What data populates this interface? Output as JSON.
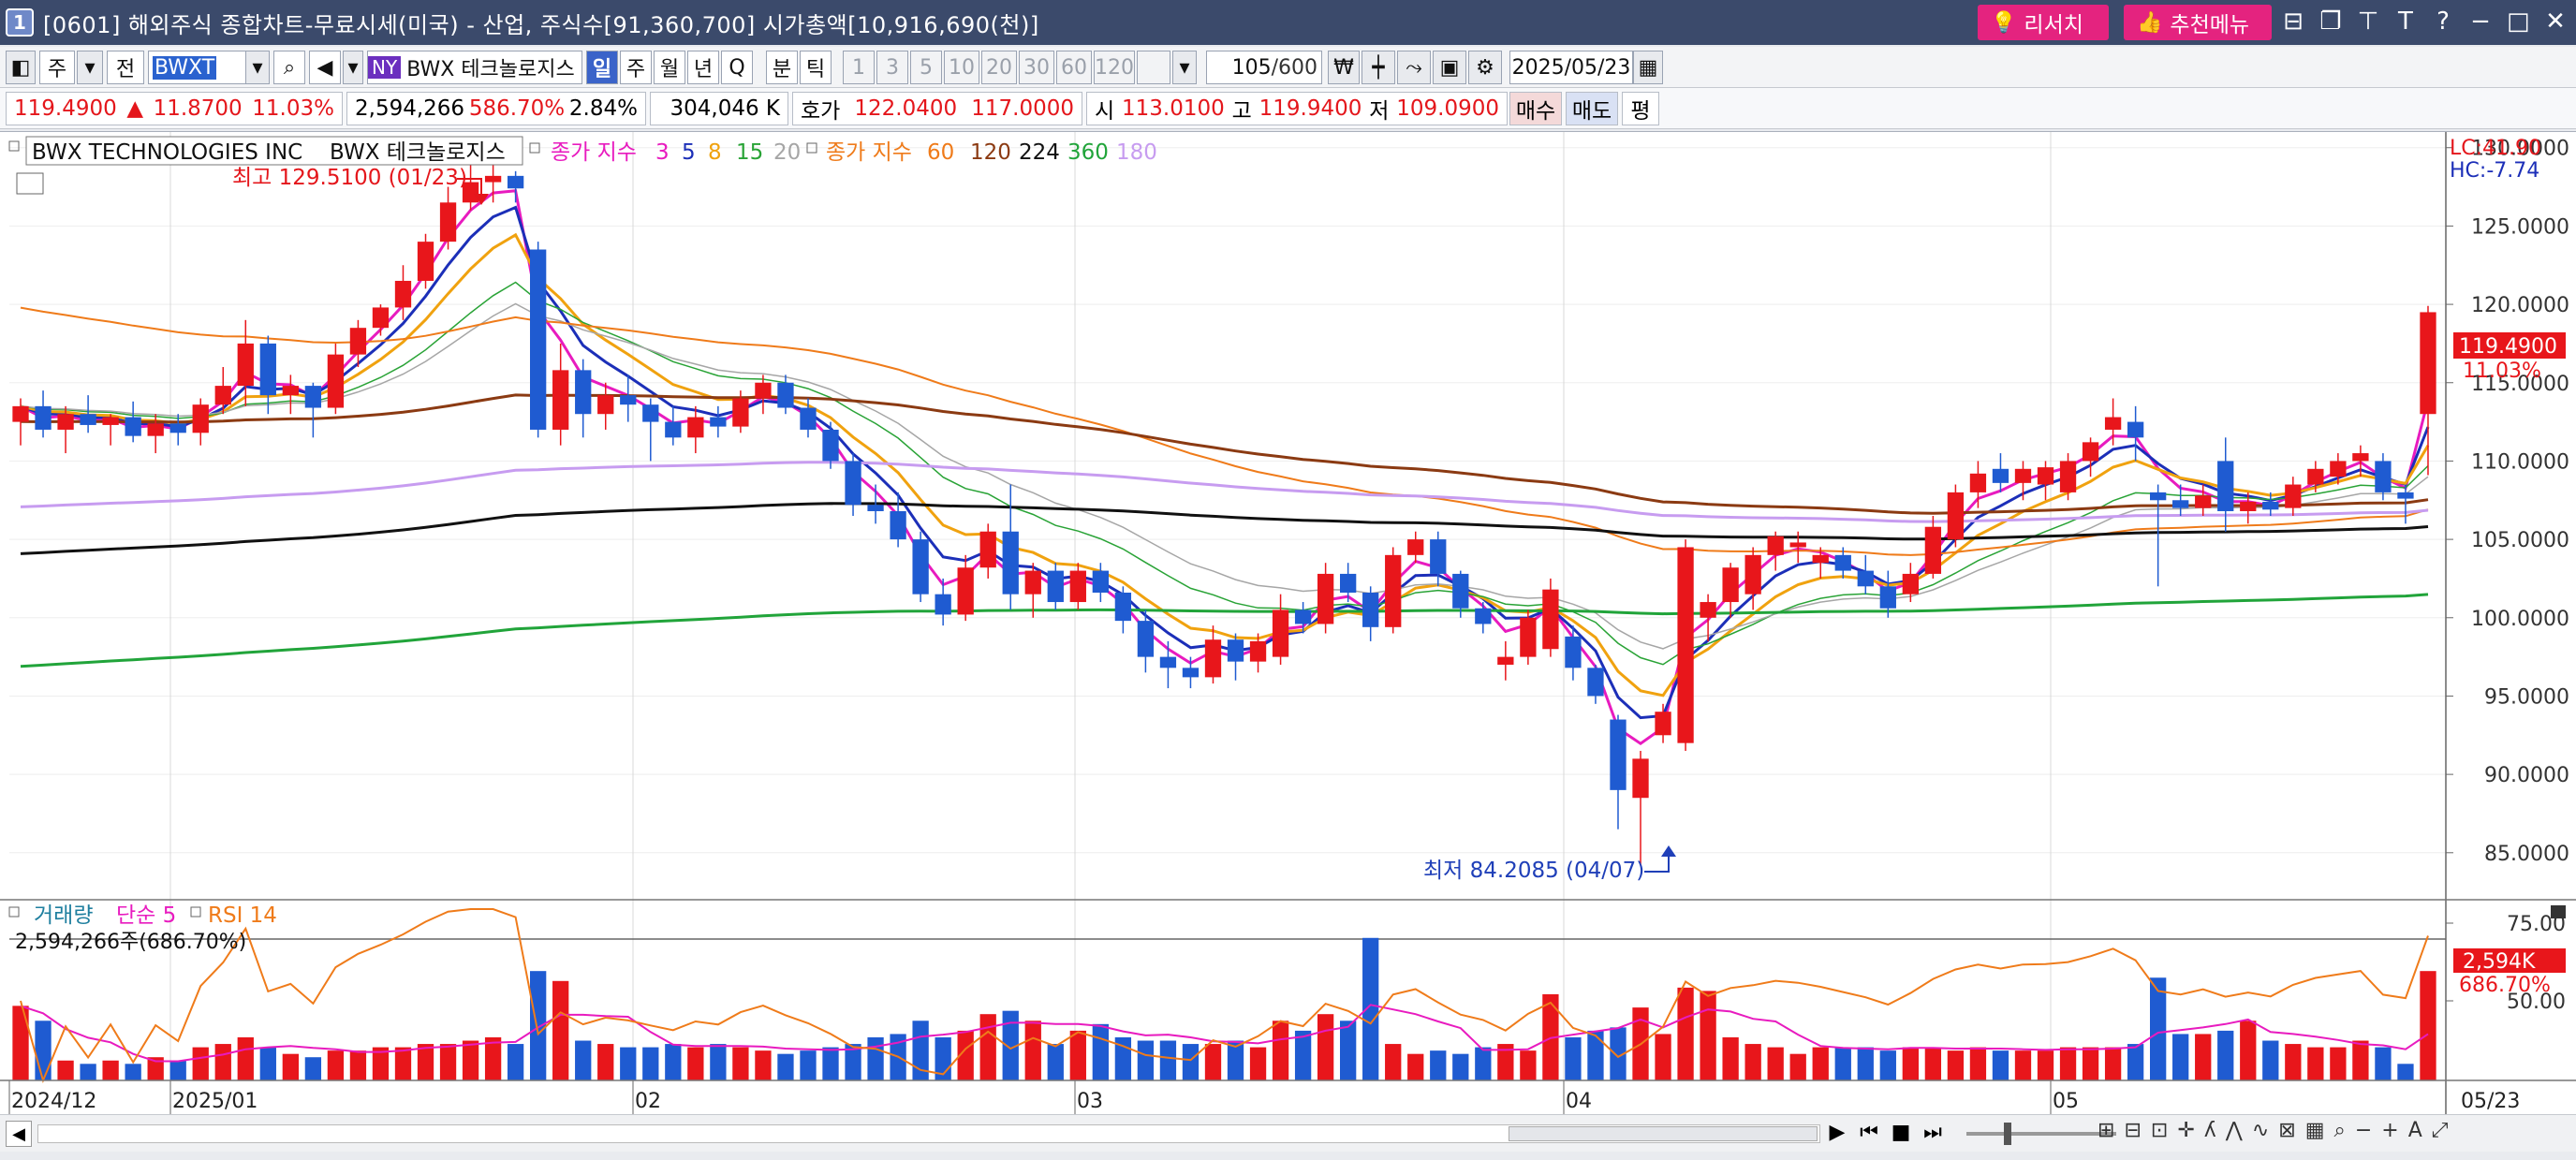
{
  "window": {
    "number": "1",
    "title": "[0601] 해외주식 종합차트-무료시세(미국) - 산업, 주식수[91,360,700] 시가총액[10,916,690(천)]",
    "research_label": "리서치",
    "recommend_label": "추천메뉴"
  },
  "toolbar": {
    "mode": "주",
    "prev": "전",
    "symbol": "BWXT",
    "exchange": "NY",
    "name": "BWX 테크놀로지스",
    "periods": [
      "일",
      "주",
      "월",
      "년",
      "Q",
      "분",
      "틱"
    ],
    "minutes": [
      "1",
      "3",
      "5",
      "10",
      "20",
      "30",
      "60",
      "120"
    ],
    "count": "105",
    "count_total": "/600",
    "date": "2025/05/23"
  },
  "quote": {
    "price": "119.4900",
    "arrow": "▲",
    "change": "11.8700",
    "change_pct": "11.03%",
    "volume": "2,594,266",
    "vol_ratio": "586.70%",
    "turnover": "2.84%",
    "amount": "304,046 K",
    "hoga_label": "호가",
    "ask": "122.0400",
    "bid": "117.0000",
    "open_label": "시",
    "open": "113.0100",
    "high_label": "고",
    "high": "119.9400",
    "low_label": "저",
    "low": "109.0900",
    "buy": "매수",
    "sell": "매도",
    "flat": "평"
  },
  "legend": {
    "name_en": "BWX TECHNOLOGIES INC",
    "name_kr": "BWX 테크놀로지스",
    "ema_label": "종가 지수",
    "ema_short": [
      "3",
      "5",
      "8",
      "15",
      "20"
    ],
    "ema_long_label": "종가 지수",
    "ema_long": [
      "60",
      "120",
      "224",
      "360",
      "180"
    ],
    "lc": "LC:41.90",
    "hc": "HC:-7.74"
  },
  "annotations": {
    "high": "최고 129.5100 (01/23)",
    "low": "최저 84.2085 (04/07)",
    "last_price": "119.4900",
    "last_pct": "11.03%"
  },
  "colors": {
    "up": "#e8161b",
    "down": "#1f5bd1",
    "ema3": "#e81bbf",
    "ema5": "#1c2fb8",
    "ema8": "#f0a20f",
    "ema15": "#29a336",
    "ema20": "#a6a6a6",
    "ema60": "#ef7b1a",
    "ema120": "#8b3a12",
    "ema224": "#111111",
    "ema360": "#21a43a",
    "ema180": "#c79cf0"
  },
  "volume_panel": {
    "label": "거래량",
    "ma_label": "단순 5",
    "rsi_label": "RSI 14",
    "readout": "2,594,266주(686.70%)",
    "last_vol": "2,594K",
    "last_pct": "686.70%"
  },
  "x_labels": [
    "2024/12",
    "2025/01",
    "02",
    "03",
    "04",
    "05",
    "05/23"
  ],
  "chart_data": {
    "type": "candlestick",
    "y_ticks": [
      "130.0000",
      "125.0000",
      "120.0000",
      "115.0000",
      "110.0000",
      "105.0000",
      "100.0000",
      "95.0000",
      "90.0000",
      "85.0000"
    ],
    "ylim": [
      82,
      131
    ],
    "vol_ticks": [
      "75.00",
      "50.00"
    ],
    "candles": [
      {
        "o": 112.5,
        "h": 114.0,
        "l": 111.0,
        "c": 113.5
      },
      {
        "o": 113.5,
        "h": 114.5,
        "l": 111.5,
        "c": 112.0
      },
      {
        "o": 112.0,
        "h": 113.5,
        "l": 110.5,
        "c": 113.0
      },
      {
        "o": 113.0,
        "h": 114.2,
        "l": 111.8,
        "c": 112.3
      },
      {
        "o": 112.3,
        "h": 113.0,
        "l": 111.0,
        "c": 112.8
      },
      {
        "o": 112.8,
        "h": 113.8,
        "l": 111.2,
        "c": 111.6
      },
      {
        "o": 111.6,
        "h": 113.0,
        "l": 110.5,
        "c": 112.4
      },
      {
        "o": 112.4,
        "h": 113.0,
        "l": 111.0,
        "c": 111.8
      },
      {
        "o": 111.8,
        "h": 114.0,
        "l": 111.0,
        "c": 113.6
      },
      {
        "o": 113.6,
        "h": 116.0,
        "l": 113.0,
        "c": 114.8
      },
      {
        "o": 114.8,
        "h": 119.0,
        "l": 113.5,
        "c": 117.5
      },
      {
        "o": 117.5,
        "h": 118.0,
        "l": 113.0,
        "c": 114.2
      },
      {
        "o": 114.2,
        "h": 115.5,
        "l": 113.0,
        "c": 114.8
      },
      {
        "o": 114.8,
        "h": 115.0,
        "l": 111.5,
        "c": 113.4
      },
      {
        "o": 113.4,
        "h": 117.5,
        "l": 113.0,
        "c": 116.8
      },
      {
        "o": 116.8,
        "h": 119.0,
        "l": 116.0,
        "c": 118.5
      },
      {
        "o": 118.5,
        "h": 120.0,
        "l": 118.0,
        "c": 119.8
      },
      {
        "o": 119.8,
        "h": 122.5,
        "l": 119.0,
        "c": 121.5
      },
      {
        "o": 121.5,
        "h": 124.5,
        "l": 121.0,
        "c": 124.0
      },
      {
        "o": 124.0,
        "h": 127.5,
        "l": 123.5,
        "c": 126.5
      },
      {
        "o": 126.5,
        "h": 129.0,
        "l": 126.0,
        "c": 127.8
      },
      {
        "o": 127.8,
        "h": 129.5,
        "l": 126.5,
        "c": 128.2
      },
      {
        "o": 128.2,
        "h": 128.5,
        "l": 126.5,
        "c": 127.4
      },
      {
        "o": 123.5,
        "h": 124.0,
        "l": 111.5,
        "c": 112.0
      },
      {
        "o": 112.0,
        "h": 117.5,
        "l": 111.0,
        "c": 115.8
      },
      {
        "o": 115.8,
        "h": 116.5,
        "l": 111.5,
        "c": 113.0
      },
      {
        "o": 113.0,
        "h": 115.0,
        "l": 112.0,
        "c": 114.2
      },
      {
        "o": 114.2,
        "h": 115.5,
        "l": 112.5,
        "c": 113.6
      },
      {
        "o": 113.6,
        "h": 114.0,
        "l": 110.0,
        "c": 112.5
      },
      {
        "o": 112.5,
        "h": 113.5,
        "l": 111.0,
        "c": 111.5
      },
      {
        "o": 111.5,
        "h": 113.5,
        "l": 110.5,
        "c": 112.8
      },
      {
        "o": 112.8,
        "h": 113.5,
        "l": 111.5,
        "c": 112.2
      },
      {
        "o": 112.2,
        "h": 114.5,
        "l": 111.8,
        "c": 114.0
      },
      {
        "o": 114.0,
        "h": 115.5,
        "l": 113.0,
        "c": 115.0
      },
      {
        "o": 115.0,
        "h": 115.5,
        "l": 113.0,
        "c": 113.4
      },
      {
        "o": 113.4,
        "h": 114.0,
        "l": 111.5,
        "c": 112.0
      },
      {
        "o": 112.0,
        "h": 112.5,
        "l": 109.5,
        "c": 110.0
      },
      {
        "o": 110.0,
        "h": 110.5,
        "l": 106.5,
        "c": 107.2
      },
      {
        "o": 107.2,
        "h": 108.5,
        "l": 106.0,
        "c": 106.8
      },
      {
        "o": 106.8,
        "h": 108.0,
        "l": 104.5,
        "c": 105.0
      },
      {
        "o": 105.0,
        "h": 105.5,
        "l": 101.0,
        "c": 101.5
      },
      {
        "o": 101.5,
        "h": 102.5,
        "l": 99.5,
        "c": 100.2
      },
      {
        "o": 100.2,
        "h": 104.0,
        "l": 99.8,
        "c": 103.2
      },
      {
        "o": 103.2,
        "h": 106.0,
        "l": 102.5,
        "c": 105.5
      },
      {
        "o": 105.5,
        "h": 108.5,
        "l": 100.5,
        "c": 101.5
      },
      {
        "o": 101.5,
        "h": 103.5,
        "l": 100.0,
        "c": 103.0
      },
      {
        "o": 103.0,
        "h": 103.5,
        "l": 100.5,
        "c": 101.0
      },
      {
        "o": 101.0,
        "h": 103.5,
        "l": 100.5,
        "c": 103.0
      },
      {
        "o": 103.0,
        "h": 103.5,
        "l": 101.0,
        "c": 101.6
      },
      {
        "o": 101.6,
        "h": 102.0,
        "l": 99.0,
        "c": 99.8
      },
      {
        "o": 99.8,
        "h": 100.5,
        "l": 96.5,
        "c": 97.5
      },
      {
        "o": 97.5,
        "h": 98.5,
        "l": 95.5,
        "c": 96.8
      },
      {
        "o": 96.8,
        "h": 97.5,
        "l": 95.5,
        "c": 96.2
      },
      {
        "o": 96.2,
        "h": 99.5,
        "l": 95.8,
        "c": 98.6
      },
      {
        "o": 98.6,
        "h": 99.0,
        "l": 96.0,
        "c": 97.2
      },
      {
        "o": 97.2,
        "h": 99.0,
        "l": 96.5,
        "c": 98.5
      },
      {
        "o": 97.5,
        "h": 101.5,
        "l": 97.0,
        "c": 100.5
      },
      {
        "o": 100.5,
        "h": 101.0,
        "l": 99.0,
        "c": 99.6
      },
      {
        "o": 99.6,
        "h": 103.5,
        "l": 99.0,
        "c": 102.8
      },
      {
        "o": 102.8,
        "h": 103.5,
        "l": 101.0,
        "c": 101.6
      },
      {
        "o": 101.6,
        "h": 102.0,
        "l": 98.5,
        "c": 99.4
      },
      {
        "o": 99.4,
        "h": 104.5,
        "l": 99.0,
        "c": 104.0
      },
      {
        "o": 104.0,
        "h": 105.5,
        "l": 103.5,
        "c": 105.0
      },
      {
        "o": 105.0,
        "h": 105.5,
        "l": 102.0,
        "c": 102.8
      },
      {
        "o": 102.8,
        "h": 103.0,
        "l": 100.0,
        "c": 100.6
      },
      {
        "o": 100.6,
        "h": 101.0,
        "l": 99.0,
        "c": 99.6
      },
      {
        "o": 97.0,
        "h": 98.5,
        "l": 96.0,
        "c": 97.5
      },
      {
        "o": 97.5,
        "h": 100.5,
        "l": 97.0,
        "c": 100.0
      },
      {
        "o": 98.0,
        "h": 102.5,
        "l": 97.5,
        "c": 101.8
      },
      {
        "o": 98.8,
        "h": 99.5,
        "l": 96.0,
        "c": 96.8
      },
      {
        "o": 96.8,
        "h": 97.0,
        "l": 94.5,
        "c": 95.0
      },
      {
        "o": 93.5,
        "h": 93.8,
        "l": 86.5,
        "c": 89.0
      },
      {
        "o": 88.5,
        "h": 91.5,
        "l": 84.2,
        "c": 91.0
      },
      {
        "o": 92.5,
        "h": 94.5,
        "l": 92.0,
        "c": 94.0
      },
      {
        "o": 92.0,
        "h": 105.0,
        "l": 91.5,
        "c": 104.5
      },
      {
        "o": 100.0,
        "h": 101.5,
        "l": 98.5,
        "c": 101.0
      },
      {
        "o": 101.0,
        "h": 103.5,
        "l": 100.0,
        "c": 103.2
      },
      {
        "o": 101.5,
        "h": 104.5,
        "l": 100.5,
        "c": 104.0
      },
      {
        "o": 104.0,
        "h": 105.5,
        "l": 103.0,
        "c": 105.2
      },
      {
        "o": 104.5,
        "h": 105.5,
        "l": 103.5,
        "c": 104.8
      },
      {
        "o": 103.5,
        "h": 104.5,
        "l": 102.5,
        "c": 104.0
      },
      {
        "o": 104.0,
        "h": 104.5,
        "l": 102.5,
        "c": 103.0
      },
      {
        "o": 103.0,
        "h": 104.0,
        "l": 101.5,
        "c": 102.0
      },
      {
        "o": 102.0,
        "h": 103.0,
        "l": 100.0,
        "c": 100.6
      },
      {
        "o": 101.5,
        "h": 103.5,
        "l": 101.0,
        "c": 102.8
      },
      {
        "o": 102.8,
        "h": 106.5,
        "l": 102.5,
        "c": 105.8
      },
      {
        "o": 105.0,
        "h": 108.5,
        "l": 104.5,
        "c": 108.0
      },
      {
        "o": 108.0,
        "h": 110.0,
        "l": 107.0,
        "c": 109.2
      },
      {
        "o": 109.5,
        "h": 110.5,
        "l": 108.0,
        "c": 108.6
      },
      {
        "o": 108.6,
        "h": 110.0,
        "l": 107.5,
        "c": 109.5
      },
      {
        "o": 108.5,
        "h": 110.0,
        "l": 107.5,
        "c": 109.6
      },
      {
        "o": 108.0,
        "h": 110.5,
        "l": 107.5,
        "c": 110.0
      },
      {
        "o": 110.0,
        "h": 111.5,
        "l": 109.0,
        "c": 111.2
      },
      {
        "o": 112.0,
        "h": 114.0,
        "l": 111.0,
        "c": 112.8
      },
      {
        "o": 112.5,
        "h": 113.5,
        "l": 110.0,
        "c": 111.5
      },
      {
        "o": 108.0,
        "h": 108.5,
        "l": 102.0,
        "c": 107.5
      },
      {
        "o": 107.5,
        "h": 108.5,
        "l": 106.5,
        "c": 107.0
      },
      {
        "o": 107.0,
        "h": 108.5,
        "l": 106.5,
        "c": 107.8
      },
      {
        "o": 110.0,
        "h": 111.5,
        "l": 105.5,
        "c": 106.8
      },
      {
        "o": 106.8,
        "h": 108.0,
        "l": 106.0,
        "c": 107.4
      },
      {
        "o": 107.4,
        "h": 108.0,
        "l": 106.5,
        "c": 106.9
      },
      {
        "o": 107.0,
        "h": 109.0,
        "l": 106.5,
        "c": 108.5
      },
      {
        "o": 108.5,
        "h": 110.0,
        "l": 108.0,
        "c": 109.5
      },
      {
        "o": 109.0,
        "h": 110.5,
        "l": 108.5,
        "c": 110.0
      },
      {
        "o": 110.0,
        "h": 111.0,
        "l": 109.0,
        "c": 110.5
      },
      {
        "o": 110.0,
        "h": 110.5,
        "l": 107.5,
        "c": 108.0
      },
      {
        "o": 108.0,
        "h": 108.5,
        "l": 106.0,
        "c": 107.6
      },
      {
        "o": 113.0,
        "h": 119.9,
        "l": 109.1,
        "c": 119.5
      }
    ],
    "volume_ratio": [
      0.45,
      0.36,
      0.12,
      0.1,
      0.12,
      0.1,
      0.14,
      0.12,
      0.2,
      0.22,
      0.26,
      0.2,
      0.16,
      0.14,
      0.18,
      0.18,
      0.2,
      0.2,
      0.22,
      0.22,
      0.24,
      0.26,
      0.22,
      0.66,
      0.6,
      0.24,
      0.22,
      0.2,
      0.2,
      0.22,
      0.2,
      0.22,
      0.2,
      0.18,
      0.16,
      0.18,
      0.2,
      0.22,
      0.26,
      0.28,
      0.36,
      0.26,
      0.3,
      0.4,
      0.42,
      0.36,
      0.22,
      0.3,
      0.34,
      0.26,
      0.24,
      0.24,
      0.22,
      0.22,
      0.24,
      0.2,
      0.36,
      0.3,
      0.4,
      0.36,
      0.86,
      0.22,
      0.16,
      0.18,
      0.16,
      0.2,
      0.22,
      0.18,
      0.52,
      0.26,
      0.3,
      0.32,
      0.44,
      0.28,
      0.56,
      0.54,
      0.26,
      0.22,
      0.2,
      0.16,
      0.2,
      0.2,
      0.2,
      0.18,
      0.2,
      0.2,
      0.18,
      0.2,
      0.18,
      0.18,
      0.18,
      0.2,
      0.2,
      0.2,
      0.22,
      0.62,
      0.28,
      0.28,
      0.3,
      0.36,
      0.24,
      0.22,
      0.2,
      0.2,
      0.24,
      0.2,
      0.1,
      0.66
    ]
  }
}
